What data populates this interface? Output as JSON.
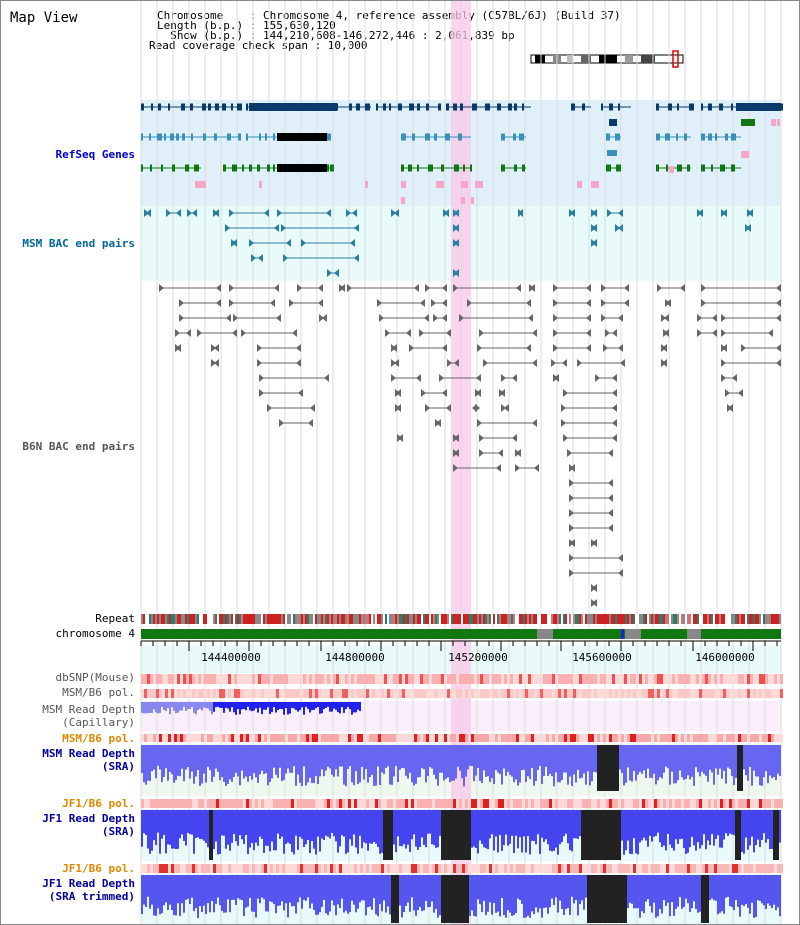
{
  "title": "Map View",
  "info": {
    "chromosome": "Chromosome    : Chromosome 4, reference assembly (C57BL/6J) (Build 37)",
    "length": "Length (b.p.) : 155,630,120",
    "show": "  Show (b.p.) : 144,210,608-146,272,446 : 2,061,839 bp",
    "coverage": "Read coverage check span : 10,000"
  },
  "tracks": {
    "refseq": "RefSeq Genes",
    "msm_bac": "MSM BAC end pairs",
    "b6n_bac": "B6N BAC end pairs",
    "repeat": "Repeat",
    "chromosome": "chromosome 4",
    "dbsnp": "dbSNP(Mouse)",
    "msm_b6_pol": "MSM/B6 pol.",
    "msm_depth_cap_1": "MSM Read Depth",
    "msm_depth_cap_2": "(Capillary)",
    "msm_b6_pol_2": "MSM/B6 pol.",
    "msm_depth_sra_1": "MSM Read Depth",
    "msm_depth_sra_2": "(SRA)",
    "jf1_b6_pol": "JF1/B6 pol.",
    "jf1_depth_sra_1": "JF1 Read Depth",
    "jf1_depth_sra_2": "(SRA)",
    "jf1_b6_pol_2": "JF1/B6 pol.",
    "jf1_depth_trim_1": "JF1 Read Depth",
    "jf1_depth_trim_2": "(SRA trimmed)"
  },
  "axis": {
    "ticks": [
      "144400000",
      "144800000",
      "145200000",
      "145600000",
      "146000000"
    ]
  },
  "colors": {
    "refseq_label": "#0000cc",
    "msm_label": "#006699",
    "gray_label": "#555555",
    "orange_label": "#dd8800",
    "navy_label": "#000099",
    "highlight": "#f8c8e8",
    "depth_blue": "#2222ee",
    "chrom_green": "#007700"
  }
}
